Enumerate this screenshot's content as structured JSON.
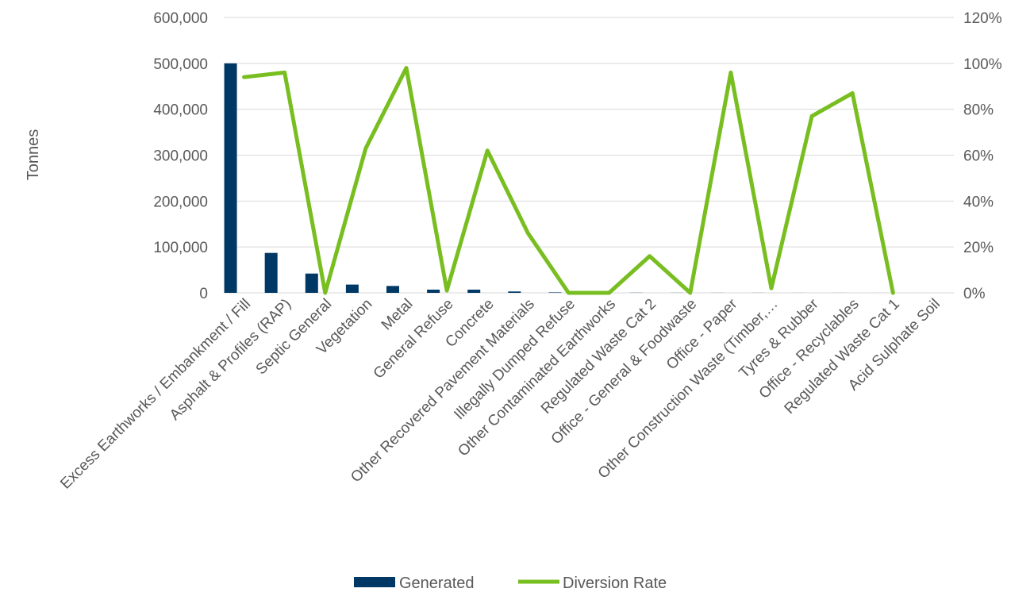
{
  "chart_data": {
    "type": "bar",
    "categories": [
      "Excess Earthworks / Embankment / Fill",
      "Asphalt & Profiles (RAP)",
      "Septic General",
      "Vegetation",
      "Metal",
      "General Refuse",
      "Concrete",
      "Other Recovered Pavement Materials",
      "Illegally Dumped Refuse",
      "Other Contaminated Earthworks",
      "Regulated Waste Cat 2",
      "Office - General & Foodwaste",
      "Office - Paper",
      "Other Construction Waste (Timber,…",
      "Tyres & Rubber",
      "Office - Recyclables",
      "Regulated Waste Cat 1",
      "Acid Sulphate Soil"
    ],
    "series": [
      {
        "name": "Generated",
        "type": "bar",
        "axis": "left",
        "color": "#003865",
        "values": [
          500000,
          87000,
          42000,
          18000,
          15000,
          7000,
          7000,
          3000,
          1000,
          500,
          300,
          200,
          150,
          150,
          100,
          100,
          50,
          20
        ]
      },
      {
        "name": "Diversion Rate",
        "type": "line",
        "axis": "right",
        "color": "#78BE20",
        "values": [
          94,
          96,
          0,
          63,
          98,
          1,
          62,
          26,
          0,
          0,
          16,
          0,
          96,
          2,
          77,
          87,
          0,
          null
        ]
      }
    ],
    "ylabel": "Tonnes",
    "ylim": [
      0,
      600000
    ],
    "y_ticks": [
      "0",
      "100,000",
      "200,000",
      "300,000",
      "400,000",
      "500,000",
      "600,000"
    ],
    "y2lim": [
      0,
      120
    ],
    "y2_ticks": [
      "0%",
      "20%",
      "40%",
      "60%",
      "80%",
      "100%",
      "120%"
    ],
    "grid": true,
    "legend_position": "bottom"
  }
}
